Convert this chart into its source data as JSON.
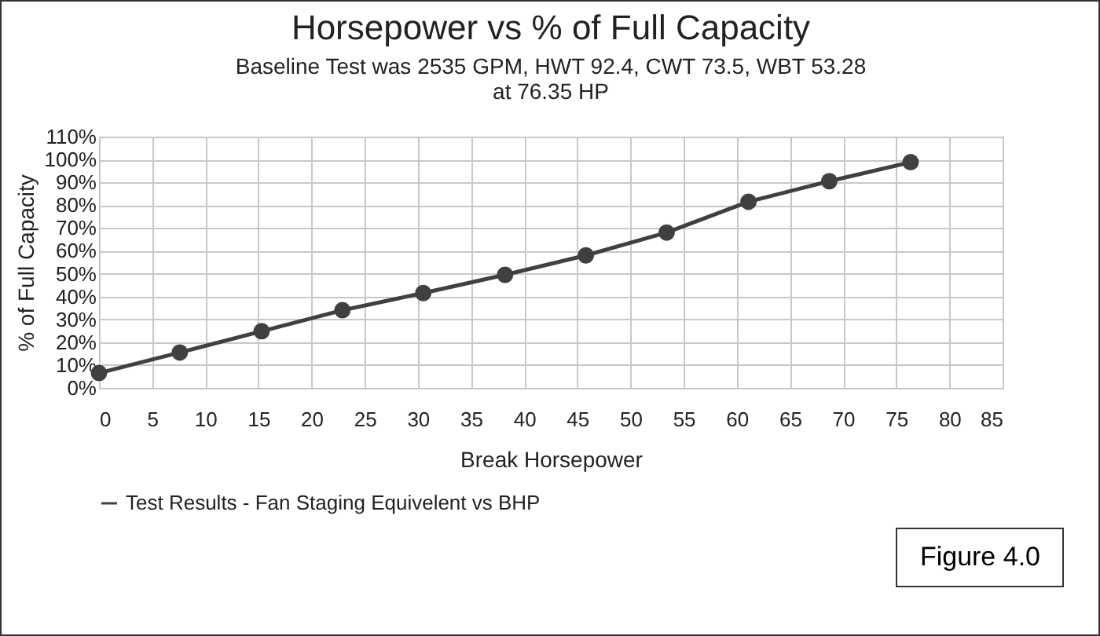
{
  "chart_data": {
    "type": "line",
    "title": "Horsepower vs % of Full Capacity",
    "subtitle": [
      "Baseline Test was 2535 GPM, HWT 92.4, CWT 73.5, WBT 53.28",
      "at 76.35 HP"
    ],
    "xlabel": "Break Horsepower",
    "ylabel": "% of Full Capacity",
    "x": [
      0,
      7.6,
      15.3,
      22.9,
      30.5,
      38.2,
      45.8,
      53.4,
      61.1,
      68.7,
      76.35
    ],
    "series": [
      {
        "name": "Test Results - Fan Staging Equivelent vs BHP",
        "color": "#404040",
        "values": [
          6.5,
          15.5,
          24.8,
          34,
          41.5,
          49.5,
          58,
          68,
          81.5,
          90.5,
          98.8
        ]
      }
    ],
    "xlim": [
      0,
      85
    ],
    "xticks": [
      0,
      5,
      10,
      15,
      20,
      25,
      30,
      35,
      40,
      45,
      50,
      55,
      60,
      65,
      70,
      75,
      80,
      85
    ],
    "ylim": [
      0,
      110
    ],
    "yticks": [
      {
        "value": 0,
        "label": "0%"
      },
      {
        "value": 10,
        "label": "10%"
      },
      {
        "value": 20,
        "label": "20%"
      },
      {
        "value": 30,
        "label": "30%"
      },
      {
        "value": 40,
        "label": "40%"
      },
      {
        "value": 50,
        "label": "50%"
      },
      {
        "value": 60,
        "label": "60%"
      },
      {
        "value": 70,
        "label": "70%"
      },
      {
        "value": 80,
        "label": "80%"
      },
      {
        "value": 90,
        "label": "90%"
      },
      {
        "value": 100,
        "label": "100%"
      },
      {
        "value": 110,
        "label": "110%"
      }
    ],
    "annotations": [
      "Figure 4.0"
    ],
    "grid": true,
    "legend": "bottom",
    "marker": "circle",
    "line_style": "solid"
  }
}
